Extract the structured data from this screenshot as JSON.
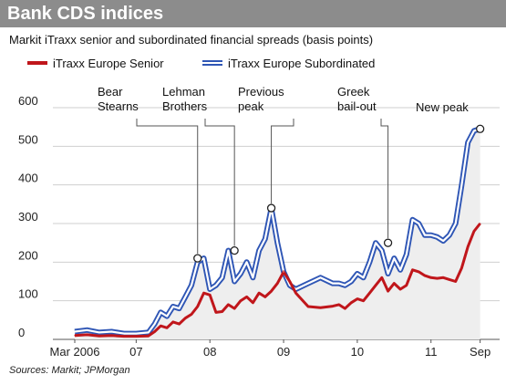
{
  "header": {
    "title": "Bank CDS indices",
    "subtitle": "Markit iTraxx senior and subordinated financial spreads (basis points)",
    "source": "Sources: Markit; JPMorgan"
  },
  "colors": {
    "title_bar": "#8c8c8c",
    "senior": "#c0161b",
    "subordinated": "#2f56b5",
    "area_fill": "#eeeeee",
    "grid": "#cfcfcf"
  },
  "chart_data": {
    "type": "line",
    "title": "Bank CDS indices",
    "subtitle": "Markit iTraxx senior and subordinated financial spreads (basis points)",
    "xlabel": "",
    "ylabel": "",
    "ylim": [
      0,
      600
    ],
    "yticks": [
      0,
      100,
      200,
      300,
      400,
      500,
      600
    ],
    "grid": true,
    "legend": "top-left",
    "xtick_labels": [
      {
        "label": "Mar 2006",
        "t": 0
      },
      {
        "label": "07",
        "t": 10
      },
      {
        "label": "08",
        "t": 22
      },
      {
        "label": "09",
        "t": 34
      },
      {
        "label": "10",
        "t": 46
      },
      {
        "label": "11",
        "t": 58
      },
      {
        "label": "Sep",
        "t": 66
      }
    ],
    "x_unit": "months since Mar 2006",
    "series": [
      {
        "name": "iTraxx Europe Senior",
        "color": "#c0161b",
        "x": [
          0,
          2,
          4,
          6,
          8,
          10,
          12,
          13,
          14,
          15,
          16,
          17,
          18,
          19,
          20,
          21,
          22,
          23,
          24,
          25,
          26,
          27,
          28,
          29,
          30,
          31,
          32,
          33,
          34,
          35,
          36,
          38,
          40,
          42,
          43,
          44,
          45,
          46,
          47,
          48,
          49,
          50,
          51,
          52,
          53,
          54,
          55,
          56,
          57,
          58,
          59,
          60,
          61,
          62,
          63,
          64,
          65,
          66
        ],
        "values": [
          10,
          12,
          9,
          10,
          8,
          8,
          9,
          20,
          35,
          30,
          45,
          40,
          55,
          65,
          85,
          120,
          115,
          70,
          72,
          90,
          80,
          100,
          110,
          95,
          120,
          110,
          125,
          145,
          175,
          150,
          120,
          85,
          82,
          86,
          90,
          80,
          95,
          105,
          100,
          120,
          140,
          160,
          125,
          145,
          130,
          140,
          180,
          175,
          165,
          160,
          158,
          160,
          155,
          150,
          185,
          240,
          280,
          300
        ]
      },
      {
        "name": "iTraxx Europe Subordinated",
        "color": "#2f56b5",
        "x": [
          0,
          2,
          4,
          6,
          8,
          10,
          12,
          13,
          14,
          15,
          16,
          17,
          18,
          19,
          20,
          21,
          22,
          23,
          24,
          25,
          26,
          27,
          28,
          29,
          30,
          31,
          32,
          33,
          34,
          35,
          36,
          38,
          40,
          42,
          43,
          44,
          45,
          46,
          47,
          48,
          49,
          50,
          51,
          52,
          53,
          54,
          55,
          56,
          57,
          58,
          59,
          60,
          61,
          62,
          63,
          64,
          65,
          66
        ],
        "values": [
          20,
          24,
          18,
          20,
          15,
          15,
          18,
          40,
          70,
          60,
          85,
          80,
          110,
          140,
          200,
          210,
          130,
          140,
          160,
          230,
          150,
          170,
          200,
          160,
          230,
          260,
          340,
          250,
          175,
          140,
          130,
          145,
          160,
          145,
          145,
          140,
          150,
          170,
          160,
          200,
          250,
          230,
          170,
          210,
          180,
          220,
          310,
          300,
          270,
          270,
          265,
          255,
          270,
          300,
          400,
          510,
          540,
          545
        ]
      }
    ],
    "annotations": [
      {
        "text": [
          "Bear",
          "Stearns"
        ],
        "x": 20,
        "y": 210
      },
      {
        "text": [
          "Lehman",
          "Brothers"
        ],
        "x": 26,
        "y": 230
      },
      {
        "text": [
          "Previous",
          "peak"
        ],
        "x": 32,
        "y": 340
      },
      {
        "text": [
          "Greek",
          "bail-out"
        ],
        "x": 51,
        "y": 250
      },
      {
        "text": [
          "New peak"
        ],
        "x": 66,
        "y": 545
      }
    ]
  }
}
